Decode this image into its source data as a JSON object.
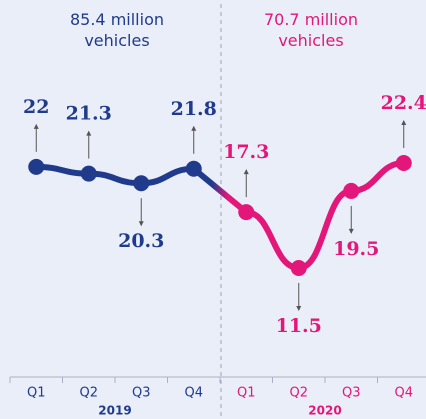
{
  "chart_data": {
    "type": "line",
    "categories": [
      "Q1",
      "Q2",
      "Q3",
      "Q4",
      "Q1",
      "Q2",
      "Q3",
      "Q4"
    ],
    "series": [
      {
        "name": "2019",
        "color": "#213b8c",
        "values": [
          22,
          21.3,
          20.3,
          21.8,
          null,
          null,
          null,
          null
        ]
      },
      {
        "name": "2020",
        "color": "#e3177a",
        "values": [
          null,
          null,
          null,
          null,
          17.3,
          11.5,
          19.5,
          22.4
        ]
      }
    ],
    "annotations": [
      "85.4 million vehicles",
      "70.7 million vehicles"
    ]
  }
}
